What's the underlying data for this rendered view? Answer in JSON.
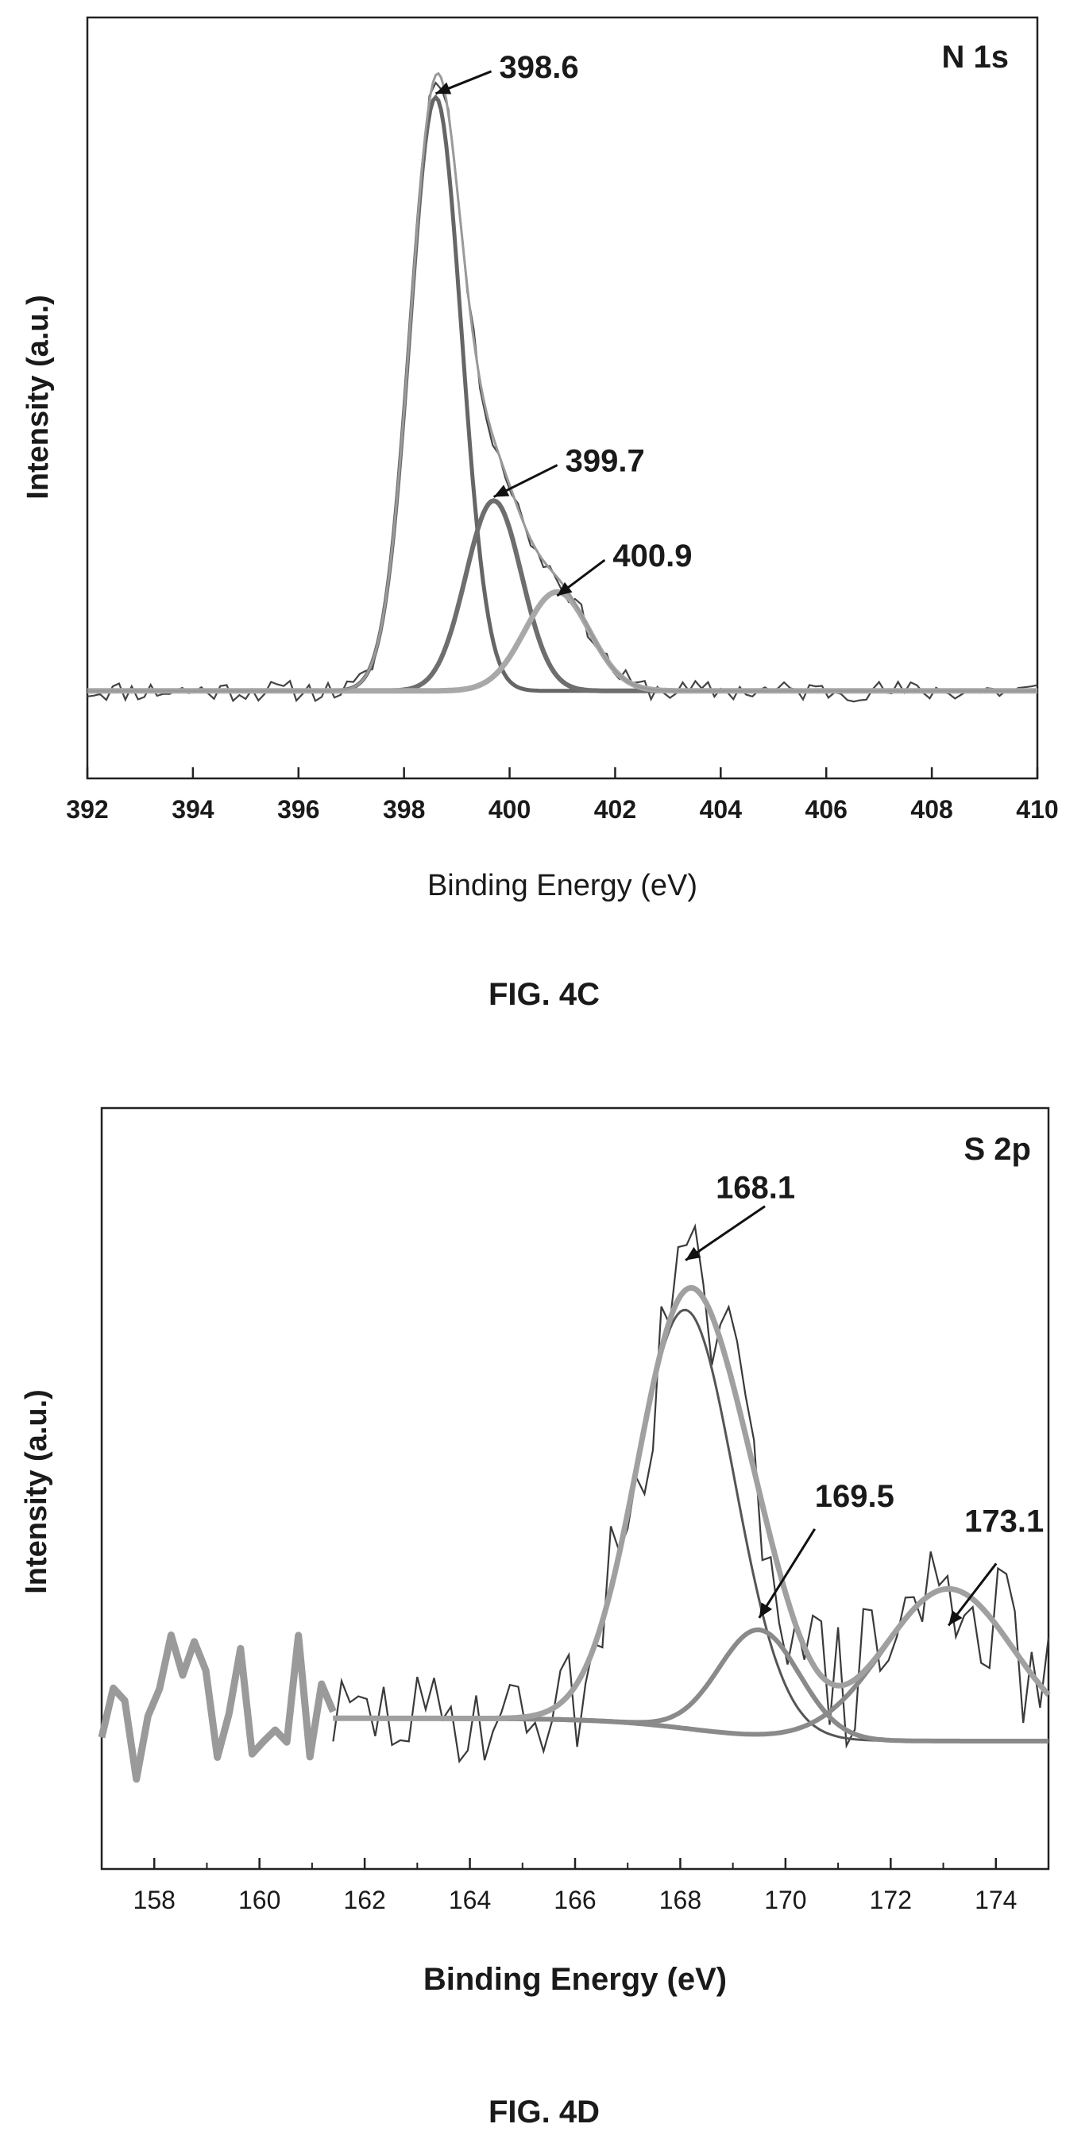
{
  "figures": [
    {
      "caption": "FIG. 4C",
      "chart_data": {
        "type": "line",
        "panel_label": "N 1s",
        "xlabel": "Binding Energy (eV)",
        "ylabel": "Intensity (a.u.)",
        "xlim": [
          392,
          410
        ],
        "ylim": [
          0,
          1
        ],
        "x_ticks": [
          "392",
          "394",
          "396",
          "398",
          "400",
          "402",
          "404",
          "406",
          "408",
          "410"
        ],
        "y_ticks_visible": false,
        "grid": false,
        "legend": "none",
        "baseline": 0.115,
        "peaks": [
          {
            "center": 398.6,
            "amplitude": 0.78,
            "fwhm": 1.15
          },
          {
            "center": 399.7,
            "amplitude": 0.25,
            "fwhm": 1.25
          },
          {
            "center": 400.9,
            "amplitude": 0.13,
            "fwhm": 1.45
          }
        ],
        "annotations": [
          {
            "text": "398.6",
            "x": 398.6,
            "y": 0.9
          },
          {
            "text": "399.7",
            "x": 399.7,
            "y": 0.37
          },
          {
            "text": "400.9",
            "x": 400.9,
            "y": 0.24
          }
        ],
        "colors": {
          "raw": "#444444",
          "envelope": "#9a9a9a",
          "peak1": "#666666",
          "peak2": "#6e6e6e",
          "peak3": "#a8a8a8"
        }
      }
    },
    {
      "caption": "FIG. 4D",
      "chart_data": {
        "type": "line",
        "panel_label": "S 2p",
        "xlabel": "Binding Energy (eV)",
        "ylabel": "Intensity (a.u.)",
        "xlim": [
          157,
          175
        ],
        "ylim": [
          0,
          1
        ],
        "x_ticks": [
          "158",
          "160",
          "162",
          "164",
          "166",
          "168",
          "170",
          "172",
          "174"
        ],
        "y_ticks_visible": false,
        "grid": false,
        "legend": "none",
        "baseline": 0.198,
        "baseline_step": {
          "center": 168.3,
          "height": -0.03
        },
        "peaks": [
          {
            "center": 168.1,
            "amplitude": 0.55,
            "fwhm": 2.2
          },
          {
            "center": 169.5,
            "amplitude": 0.14,
            "fwhm": 1.8
          },
          {
            "center": 173.1,
            "amplitude": 0.2,
            "fwhm": 2.9
          }
        ],
        "annotations": [
          {
            "text": "168.1",
            "x": 168.1,
            "y": 0.8
          },
          {
            "text": "169.5",
            "x": 169.5,
            "y": 0.33
          },
          {
            "text": "173.1",
            "x": 173.1,
            "y": 0.32
          }
        ],
        "colors": {
          "raw": "#3a3a3a",
          "envelope": "#a0a0a0",
          "raw_low_energy": "#9a9a9a",
          "peak1": "#555555",
          "peak2": "#8a8a8a",
          "peak3": "#8a8a8a"
        }
      }
    }
  ]
}
